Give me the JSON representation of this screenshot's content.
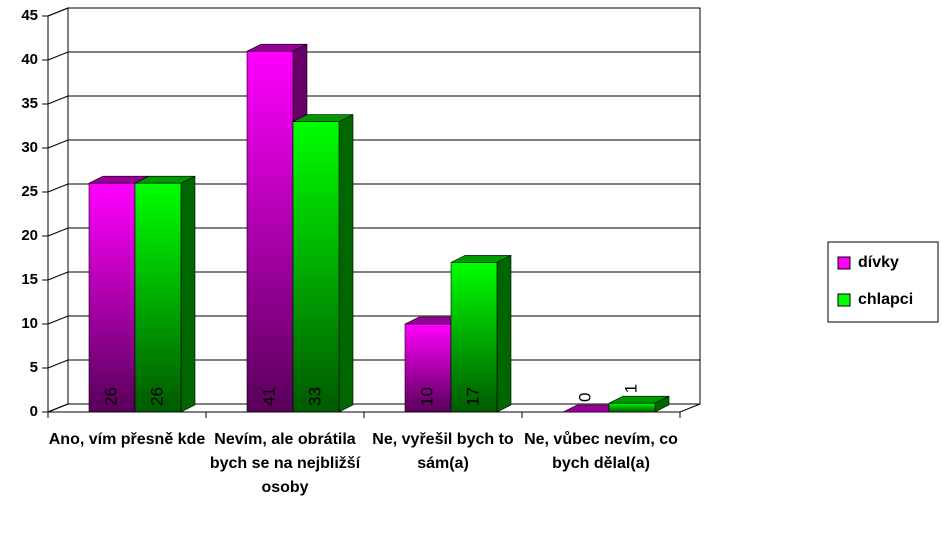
{
  "chart_data": {
    "type": "bar3d",
    "categories": [
      "Ano, vím přesně kde",
      "Nevím, ale obrátila bych se na nejbližší osoby",
      "Ne, vyřešil bych to sám(a)",
      "Ne, vůbec nevím, co bych dělal(a)"
    ],
    "series": [
      {
        "name": "dívky",
        "color": "#ff00ff",
        "values": [
          26,
          41,
          10,
          0
        ]
      },
      {
        "name": "chlapci",
        "color": "#00ff00",
        "values": [
          26,
          33,
          17,
          1
        ]
      }
    ],
    "ylim": [
      0,
      45
    ],
    "yticks": [
      0,
      5,
      10,
      15,
      20,
      25,
      30,
      35,
      40,
      45
    ],
    "grid": true,
    "legend": "right"
  }
}
